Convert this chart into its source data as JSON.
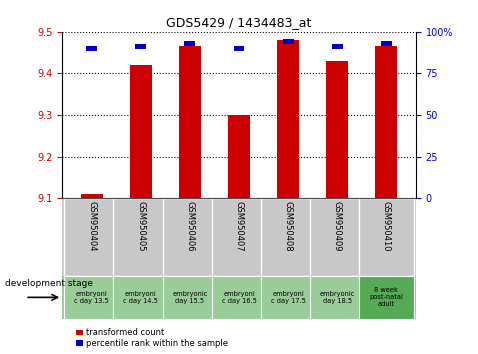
{
  "title": "GDS5429 / 1434483_at",
  "samples": [
    "GSM950404",
    "GSM950405",
    "GSM950406",
    "GSM950407",
    "GSM950408",
    "GSM950409",
    "GSM950410"
  ],
  "transformed_count": [
    9.11,
    9.42,
    9.465,
    9.3,
    9.48,
    9.43,
    9.465
  ],
  "percentile_rank": [
    90,
    91,
    93,
    90,
    94,
    91,
    93
  ],
  "bar_bottom": 9.1,
  "ylim_left": [
    9.1,
    9.5
  ],
  "ylim_right": [
    0,
    100
  ],
  "yticks_left": [
    9.1,
    9.2,
    9.3,
    9.4,
    9.5
  ],
  "yticks_right": [
    0,
    25,
    50,
    75,
    100
  ],
  "bar_color": "#cc0000",
  "point_color": "#0000cc",
  "bar_width": 0.45,
  "development_stages": [
    "embryoni\nc day 13.5",
    "embryoni\nc day 14.5",
    "embryonic\nday 15.5",
    "embryoni\nc day 16.5",
    "embryoni\nc day 17.5",
    "embryonic\nday 18.5",
    "8 week\npost-natal\nadult"
  ],
  "stage_bg_color_embryonic": "#99cc99",
  "stage_bg_color_adult": "#55aa55",
  "sample_bg_color": "#c8c8c8",
  "legend_items": [
    {
      "label": "transformed count",
      "color": "#cc0000"
    },
    {
      "label": "percentile rank within the sample",
      "color": "#0000cc"
    }
  ]
}
